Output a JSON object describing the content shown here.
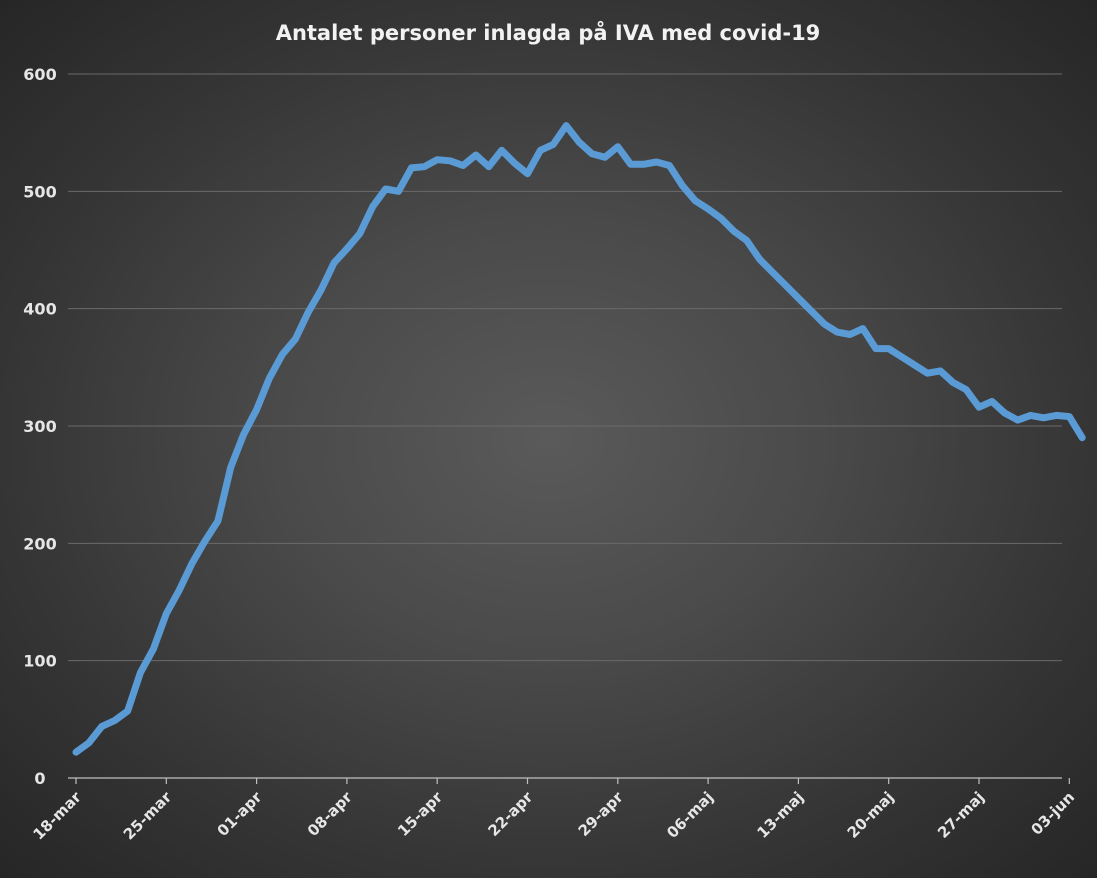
{
  "chart_data": {
    "type": "line",
    "title": "Antalet personer inlagda på IVA med covid-19",
    "xlabel": "",
    "ylabel": "",
    "ylim": [
      0,
      600
    ],
    "y_ticks": [
      "0",
      "100",
      "200",
      "300",
      "400",
      "500",
      "600"
    ],
    "x_tick_labels": [
      "18-mar",
      "25-mar",
      "01-apr",
      "08-apr",
      "15-apr",
      "22-apr",
      "29-apr",
      "06-maj",
      "13-maj",
      "20-maj",
      "27-maj",
      "03-jun"
    ],
    "grid": true,
    "legend": "none",
    "line_color": "#5b9bd5",
    "x_start": "2020-03-18",
    "series": [
      {
        "values": [
          22,
          30,
          44,
          49,
          57,
          90,
          110,
          140,
          160,
          183,
          202,
          219,
          265,
          293,
          314,
          341,
          361,
          374,
          397,
          416,
          439,
          451,
          464,
          487,
          502,
          500,
          520,
          521,
          527,
          526,
          522,
          531,
          521,
          535,
          524,
          515,
          535,
          540,
          556,
          542,
          532,
          529,
          538,
          523,
          523,
          525,
          522,
          505,
          492,
          485,
          477,
          466,
          458,
          442,
          431,
          420,
          409,
          398,
          387,
          380,
          378,
          383,
          366,
          366,
          359,
          352,
          345,
          347,
          337,
          331,
          316,
          321,
          311,
          305,
          309,
          307,
          309,
          308,
          290
        ]
      }
    ]
  }
}
